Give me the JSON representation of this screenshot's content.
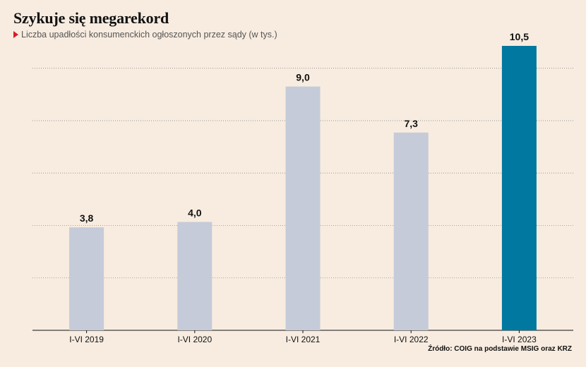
{
  "header": {
    "title": "Szykuje się megarekord",
    "subtitle": "Liczba upadłości konsumenckich ogłoszonych przez sądy (w tys.)"
  },
  "source": "Źródło: COIG na podstawie MSIG oraz KRZ",
  "colors": {
    "bar_default": "#c5cbd8",
    "bar_highlight": "#0078a0",
    "marker": "#d41f27",
    "background": "#f8ece0"
  },
  "chart_data": {
    "type": "bar",
    "title": "Szykuje się megarekord",
    "subtitle": "Liczba upadłości konsumenckich ogłoszonych przez sądy (w tys.)",
    "categories": [
      "I-VI 2019",
      "I-VI 2020",
      "I-VI 2021",
      "I-VI 2022",
      "I-VI 2023"
    ],
    "values": [
      3.8,
      4.0,
      9.0,
      7.3,
      10.5
    ],
    "value_labels": [
      "3,8",
      "4,0",
      "9,0",
      "7,3",
      "10,5"
    ],
    "highlight_index": 4,
    "ylim": [
      0,
      10.5
    ],
    "grid": true,
    "grid_style": "dotted horizontal",
    "xlabel": "",
    "ylabel": ""
  }
}
